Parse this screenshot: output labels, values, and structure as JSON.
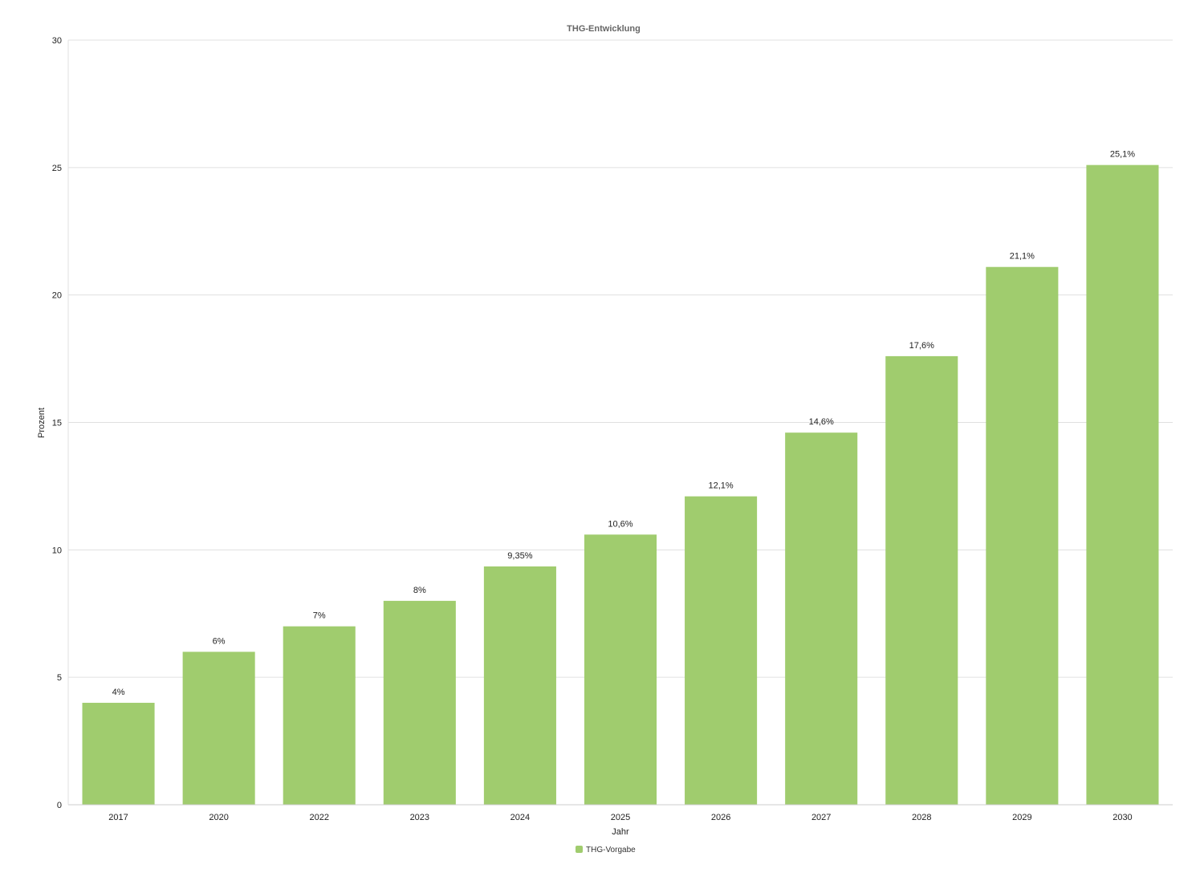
{
  "chart_data": {
    "type": "bar",
    "title": "THG-Entwicklung",
    "xlabel": "Jahr",
    "ylabel": "Prozent",
    "categories": [
      "2017",
      "2020",
      "2022",
      "2023",
      "2024",
      "2025",
      "2026",
      "2027",
      "2028",
      "2029",
      "2030"
    ],
    "series": [
      {
        "name": "THG-Vorgabe",
        "values": [
          4,
          6,
          7,
          8,
          9.35,
          10.6,
          12.1,
          14.6,
          17.6,
          21.1,
          25.1
        ],
        "data_labels": [
          "4%",
          "6%",
          "7%",
          "8%",
          "9,35%",
          "10,6%",
          "12,1%",
          "14,6%",
          "17,6%",
          "21,1%",
          "25,1%"
        ],
        "color": "#a0cc6e"
      }
    ],
    "ylim": [
      0,
      30
    ],
    "yticks": [
      0,
      5,
      10,
      15,
      20,
      25,
      30
    ],
    "grid": true,
    "legend_position": "bottom"
  },
  "colors": {
    "bar": "#a0cc6e",
    "grid": "#e0e0e0",
    "axis": "#cccccc"
  }
}
